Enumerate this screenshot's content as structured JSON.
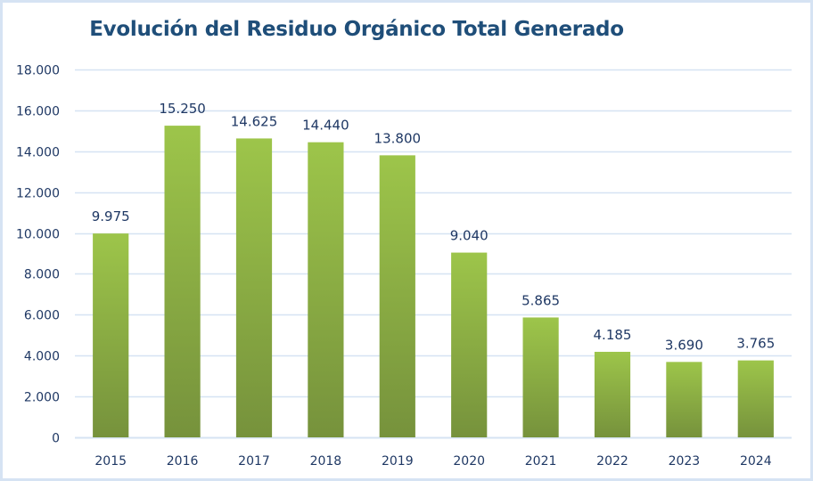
{
  "chart_data": {
    "type": "bar",
    "title": "Evolución del Residuo Orgánico Total Generado",
    "xlabel": "",
    "ylabel": "",
    "categories": [
      "2015",
      "2016",
      "2017",
      "2018",
      "2019",
      "2020",
      "2021",
      "2022",
      "2023",
      "2024"
    ],
    "values": [
      9975,
      15250,
      14625,
      14440,
      13800,
      9040,
      5865,
      4185,
      3690,
      3765
    ],
    "value_labels": [
      "9.975",
      "15.250",
      "14.625",
      "14.440",
      "13.800",
      "9.040",
      "5.865",
      "4.185",
      "3.690",
      "3.765"
    ],
    "ylim": [
      0,
      18000
    ],
    "yticks": [
      0,
      2000,
      4000,
      6000,
      8000,
      10000,
      12000,
      14000,
      16000,
      18000
    ],
    "ytick_labels": [
      "0",
      "2.000",
      "4.000",
      "6.000",
      "8.000",
      "10.000",
      "12.000",
      "14.000",
      "16.000",
      "18.000"
    ],
    "grid": true,
    "legend": "none",
    "colors": {
      "bar_top": "#9dc54a",
      "bar_bottom": "#76923c",
      "grid": "#d6e3f3",
      "text": "#1f3864",
      "title": "#1f4e79"
    }
  }
}
